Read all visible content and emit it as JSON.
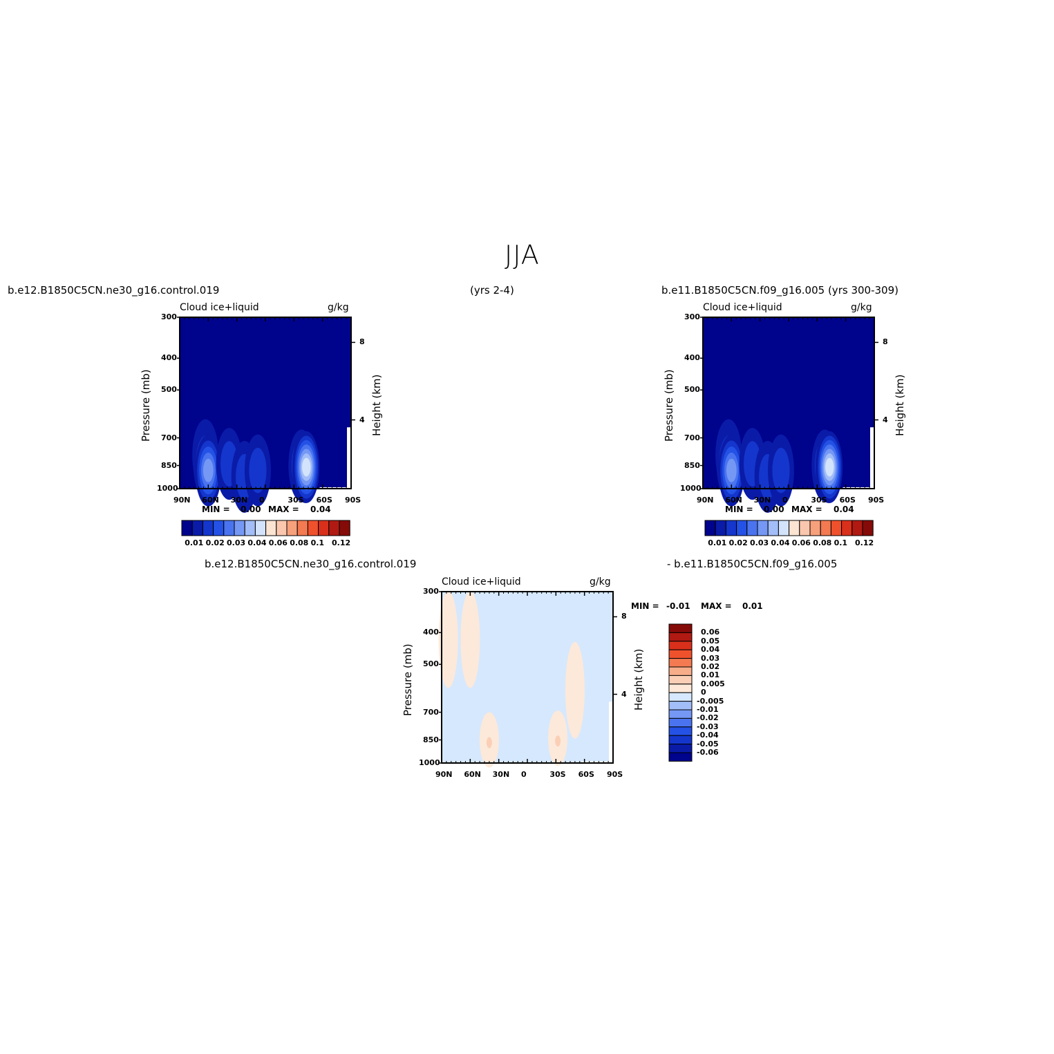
{
  "page": {
    "title": "JJA",
    "case1": "b.e12.B1850C5CN.ne30_g16.control.019",
    "years1": "(yrs 2-4)",
    "case2": "b.e11.B1850C5CN.f09_g16.005 (yrs 300-309)",
    "diff_left": "b.e12.B1850C5CN.ne30_g16.control.019",
    "diff_right": "- b.e11.B1850C5CN.f09_g16.005"
  },
  "colors": {
    "ramp": [
      "#00038c",
      "#0a1ba8",
      "#1436cc",
      "#2452e6",
      "#4a74ef",
      "#7598f5",
      "#a2bdf7",
      "#d2e3fb",
      "#fce4d2",
      "#fac7ae",
      "#f7a07c",
      "#f47a51",
      "#f0512d",
      "#d9301b",
      "#b01a12",
      "#850b08"
    ],
    "diff_ramp": [
      "#00038c",
      "#0a1ba8",
      "#1436cc",
      "#2452e6",
      "#4a74ef",
      "#7598f5",
      "#a2bdf7",
      "#d6e8fd",
      "#fee9d8",
      "#fbcfb6",
      "#f8ad8a",
      "#f47a51",
      "#f0512d",
      "#d9301b",
      "#b01a12",
      "#850b08"
    ]
  },
  "chart_data": [
    {
      "type": "heatmap",
      "name": "panel-1",
      "title": "Cloud  ice+liquid",
      "units": "g/kg",
      "ylabel": "Pressure (mb)",
      "y2label": "Height (km)",
      "x_ticks": [
        "90N",
        "60N",
        "30N",
        "0",
        "30S",
        "60S",
        "90S"
      ],
      "y_ticks": [
        "300",
        "400",
        "500",
        "700",
        "850",
        "1000"
      ],
      "y_ticks_values": [
        300,
        400,
        500,
        700,
        850,
        1000
      ],
      "y2_ticks": [
        "8",
        "4"
      ],
      "xlim": [
        90,
        -90
      ],
      "ylim": [
        1000,
        300
      ],
      "min_label": "MIN =",
      "min_value": "0.00",
      "max_label": "MAX =",
      "max_value": "0.04",
      "colorbar_labels": [
        "0.01",
        "0.02",
        "0.03",
        "0.04",
        "0.06",
        "0.08",
        "0.1",
        "0.12"
      ],
      "features": [
        {
          "lat": 63,
          "p": 790,
          "level": 2
        },
        {
          "lat": 62,
          "p": 840,
          "level": 4
        },
        {
          "lat": 60,
          "p": 880,
          "level": 5
        },
        {
          "lat": 38,
          "p": 840,
          "level": 2
        },
        {
          "lat": 22,
          "p": 920,
          "level": 2
        },
        {
          "lat": 8,
          "p": 880,
          "level": 2
        },
        {
          "lat": -38,
          "p": 850,
          "level": 3
        },
        {
          "lat": -42,
          "p": 860,
          "level": 6
        },
        {
          "lat": -43,
          "p": 860,
          "level": 7
        }
      ]
    },
    {
      "type": "heatmap",
      "name": "panel-2",
      "title": "Cloud  ice+liquid",
      "units": "g/kg",
      "ylabel": "Pressure (mb)",
      "y2label": "Height (km)",
      "x_ticks": [
        "90N",
        "60N",
        "30N",
        "0",
        "30S",
        "60S",
        "90S"
      ],
      "y_ticks": [
        "300",
        "400",
        "500",
        "700",
        "850",
        "1000"
      ],
      "y_ticks_values": [
        300,
        400,
        500,
        700,
        850,
        1000
      ],
      "y2_ticks": [
        "8",
        "4"
      ],
      "xlim": [
        90,
        -90
      ],
      "ylim": [
        1000,
        300
      ],
      "min_label": "MIN =",
      "min_value": "0.00",
      "max_label": "MAX =",
      "max_value": "0.04",
      "colorbar_labels": [
        "0.01",
        "0.02",
        "0.03",
        "0.04",
        "0.06",
        "0.08",
        "0.1",
        "0.12"
      ],
      "features": [
        {
          "lat": 63,
          "p": 790,
          "level": 2
        },
        {
          "lat": 62,
          "p": 840,
          "level": 4
        },
        {
          "lat": 60,
          "p": 880,
          "level": 5
        },
        {
          "lat": 38,
          "p": 840,
          "level": 2
        },
        {
          "lat": 22,
          "p": 920,
          "level": 2
        },
        {
          "lat": 8,
          "p": 880,
          "level": 2
        },
        {
          "lat": -38,
          "p": 850,
          "level": 3
        },
        {
          "lat": -42,
          "p": 860,
          "level": 6
        },
        {
          "lat": -43,
          "p": 860,
          "level": 7
        }
      ]
    },
    {
      "type": "heatmap",
      "name": "panel-diff",
      "title": "Cloud  ice+liquid",
      "units": "g/kg",
      "ylabel": "Pressure (mb)",
      "y2label": "Height (km)",
      "x_ticks": [
        "90N",
        "60N",
        "30N",
        "0",
        "30S",
        "60S",
        "90S"
      ],
      "y_ticks": [
        "300",
        "400",
        "500",
        "700",
        "850",
        "1000"
      ],
      "y_ticks_values": [
        300,
        400,
        500,
        700,
        850,
        1000
      ],
      "y2_ticks": [
        "8",
        "4"
      ],
      "xlim": [
        90,
        -90
      ],
      "ylim": [
        1000,
        300
      ],
      "min_label": "MIN =",
      "min_value": "-0.01",
      "max_label": "MAX =",
      "max_value": "0.01",
      "colorbar_labels": [
        "0.06",
        "0.05",
        "0.04",
        "0.03",
        "0.02",
        "0.01",
        "0.005",
        "0",
        "-0.005",
        "-0.01",
        "-0.02",
        "-0.03",
        "-0.04",
        "-0.05",
        "-0.06"
      ],
      "features": [
        {
          "lat": 83,
          "p": 420,
          "sign": "pos"
        },
        {
          "lat": 60,
          "p": 420,
          "sign": "pos"
        },
        {
          "lat": 40,
          "p": 850,
          "sign": "pos"
        },
        {
          "lat": -32,
          "p": 840,
          "sign": "pos"
        },
        {
          "lat": -50,
          "p": 600,
          "sign": "pos"
        }
      ]
    }
  ]
}
